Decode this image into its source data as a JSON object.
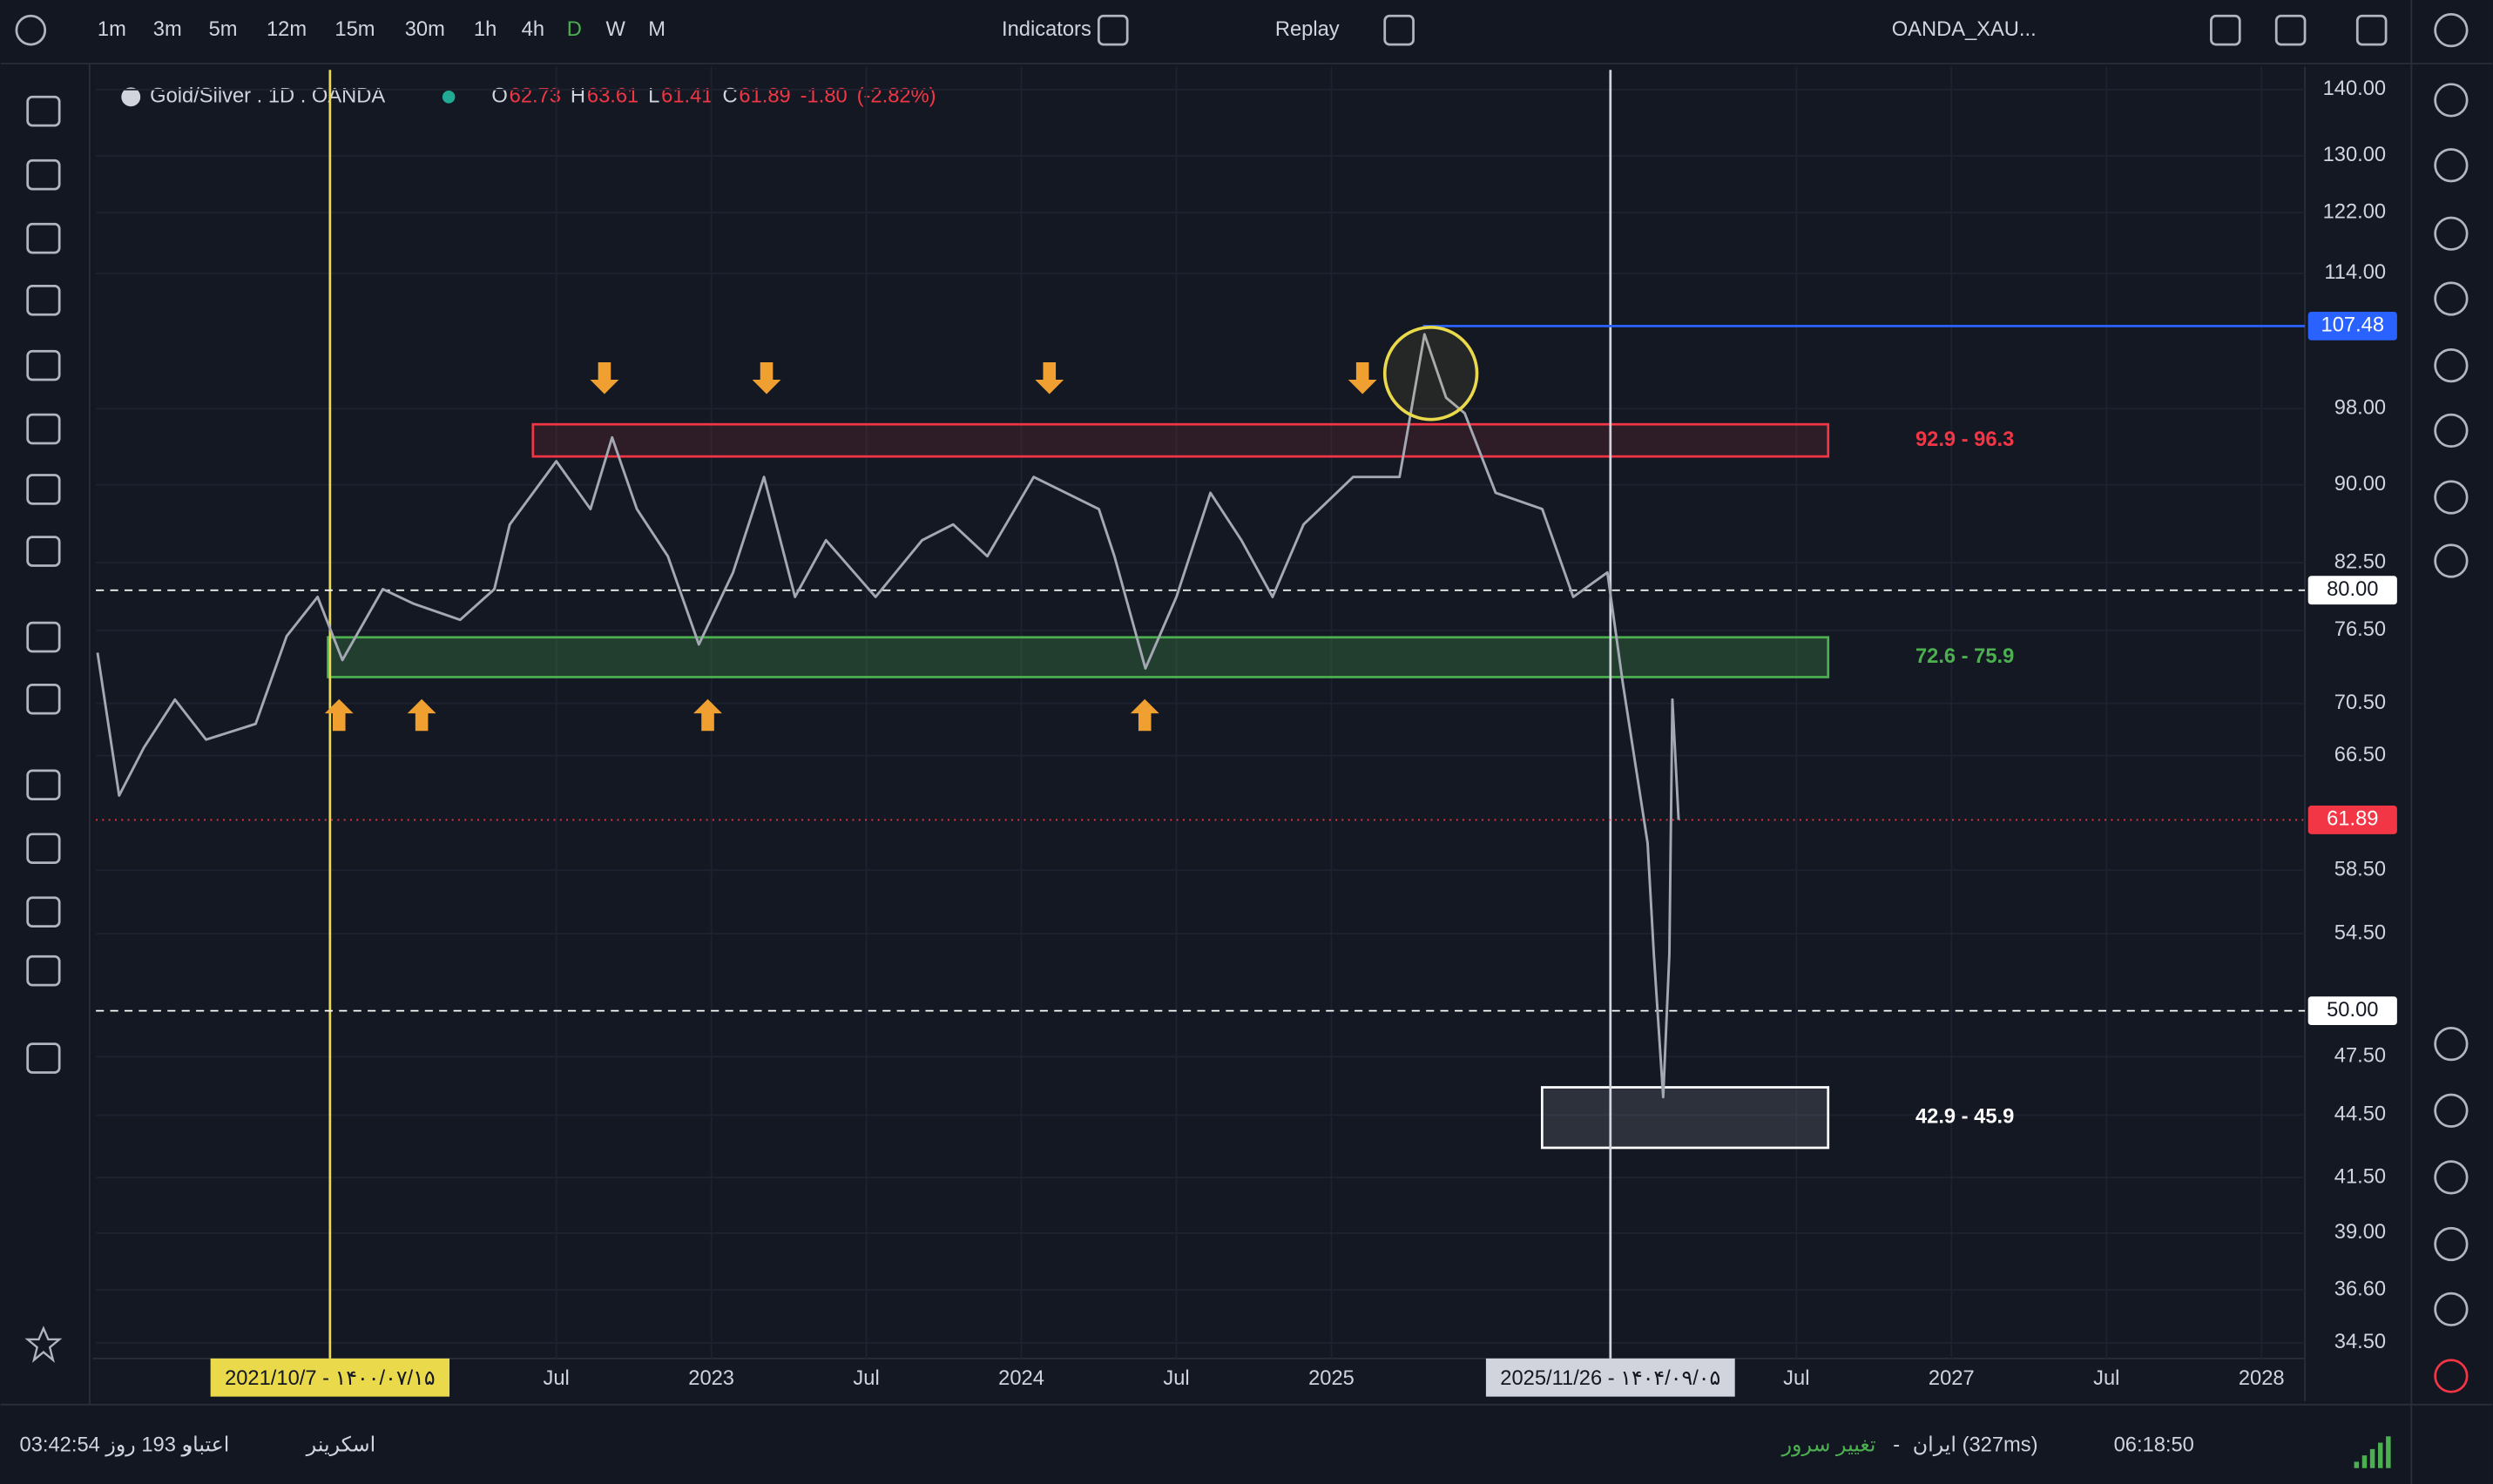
{
  "toolbar": {
    "intervals": [
      "1m",
      "3m",
      "5m",
      "12m",
      "15m",
      "30m",
      "1h",
      "4h",
      "D",
      "W",
      "M"
    ],
    "indicators": "Indicators",
    "replay": "Replay",
    "symbol": "OANDA_XAU..."
  },
  "legend": {
    "symbol": "Gold/Silver . 1D . OANDA",
    "o_label": "O",
    "open": "62.73",
    "h_label": "H",
    "high": "63.61",
    "l_label": "L",
    "low": "61.41",
    "c_label": "C",
    "close": "61.89",
    "change": "-1.80",
    "change_pct": "(-2.82%)"
  },
  "chart_data": {
    "type": "line",
    "color": "#a3a8b3",
    "log_scale": true,
    "x": [
      2021.02,
      2021.09,
      2021.17,
      2021.27,
      2021.37,
      2021.53,
      2021.63,
      2021.73,
      2021.81,
      2021.94,
      2022.04,
      2022.19,
      2022.3,
      2022.35,
      2022.5,
      2022.61,
      2022.68,
      2022.76,
      2022.86,
      2022.96,
      2023.07,
      2023.17,
      2023.27,
      2023.37,
      2023.53,
      2023.68,
      2023.78,
      2023.89,
      2024.04,
      2024.25,
      2024.3,
      2024.4,
      2024.5,
      2024.61,
      2024.71,
      2024.81,
      2024.91,
      2025.07,
      2025.22,
      2025.3,
      2025.37,
      2025.43,
      2025.53,
      2025.68,
      2025.78,
      2025.89,
      2025.94,
      2026.02,
      2026.04,
      2026.07,
      2026.09,
      2026.1,
      2026.12
    ],
    "values": [
      74.6,
      63.6,
      67.1,
      70.8,
      67.7,
      68.9,
      76.0,
      79.4,
      74.0,
      80.1,
      78.8,
      77.4,
      80.1,
      86.1,
      92.4,
      87.6,
      94.9,
      87.6,
      83.1,
      75.3,
      81.6,
      90.8,
      79.4,
      84.6,
      79.4,
      84.6,
      86.1,
      83.1,
      90.8,
      87.6,
      83.1,
      73.3,
      79.4,
      89.2,
      84.6,
      79.4,
      86.1,
      90.8,
      90.8,
      106.5,
      99.2,
      97.5,
      89.2,
      87.6,
      79.4,
      81.6,
      72.1,
      60.3,
      53.3,
      45.4,
      53.3,
      70.8,
      61.89
    ],
    "xlim": [
      2021.015,
      2028.14
    ],
    "xticks": [
      {
        "value": 2022.5,
        "label": "Jul"
      },
      {
        "value": 2023,
        "label": "2023"
      },
      {
        "value": 2023.5,
        "label": "Jul"
      },
      {
        "value": 2024,
        "label": "2024"
      },
      {
        "value": 2024.5,
        "label": "Jul"
      },
      {
        "value": 2025,
        "label": "2025"
      },
      {
        "value": 2026.5,
        "label": "Jul"
      },
      {
        "value": 2027,
        "label": "2027"
      },
      {
        "value": 2027.5,
        "label": "Jul"
      },
      {
        "value": 2028,
        "label": "2028"
      }
    ],
    "ylim": [
      33.9,
      143.1
    ],
    "yticks": [
      {
        "value": 140,
        "label": "140.00"
      },
      {
        "value": 130,
        "label": "130.00"
      },
      {
        "value": 122,
        "label": "122.00"
      },
      {
        "value": 114,
        "label": "114.00"
      },
      {
        "value": 98,
        "label": "98.00"
      },
      {
        "value": 90,
        "label": "90.00"
      },
      {
        "value": 82.5,
        "label": "82.50"
      },
      {
        "value": 76.5,
        "label": "76.50"
      },
      {
        "value": 70.5,
        "label": "70.50"
      },
      {
        "value": 66.5,
        "label": "66.50"
      },
      {
        "value": 58.5,
        "label": "58.50"
      },
      {
        "value": 54.5,
        "label": "54.50"
      },
      {
        "value": 47.5,
        "label": "47.50"
      },
      {
        "value": 44.5,
        "label": "44.50"
      },
      {
        "value": 41.5,
        "label": "41.50"
      },
      {
        "value": 39,
        "label": "39.00"
      },
      {
        "value": 36.6,
        "label": "36.60"
      },
      {
        "value": 34.5,
        "label": "34.50"
      }
    ],
    "price_labels": [
      {
        "value": 107.48,
        "label": "107.48",
        "color": "#2962ff",
        "line": "solid"
      },
      {
        "value": 80,
        "label": "80.00",
        "color": "#ffffff",
        "line": "dashed"
      },
      {
        "value": 61.89,
        "label": "61.89",
        "color": "#f23645",
        "line": "dotted"
      },
      {
        "value": 50,
        "label": "50.00",
        "color": "#ffffff",
        "line": "dashed"
      }
    ],
    "zones": [
      {
        "low": 92.9,
        "high": 96.3,
        "label": "92.9 - 96.3",
        "color": "#f23645"
      },
      {
        "low": 72.6,
        "high": 75.9,
        "label": "72.6 - 75.9",
        "color": "#4caf50"
      },
      {
        "low": 42.9,
        "high": 45.9,
        "label": "42.9 - 45.9",
        "color": "#ffffff"
      }
    ],
    "markers": [
      {
        "x": 2021.77,
        "label": "2021/10/7 - ۱۴۰۰/۰۷/۱۵",
        "color": "#e9d94b"
      },
      {
        "x": 2025.9,
        "label": "2025/11/26 - ۱۴۰۴/۰۹/۰۵",
        "color": "#d1d4dc"
      }
    ]
  },
  "status_bar": {
    "countdown": "03:42:54 و 193 روز",
    "credit": "اعتبار",
    "screener": "اسکرینر",
    "change_server": "تغییر سرور",
    "separator": "-",
    "server": "ایران (327ms)",
    "clock": "06:18:50"
  }
}
